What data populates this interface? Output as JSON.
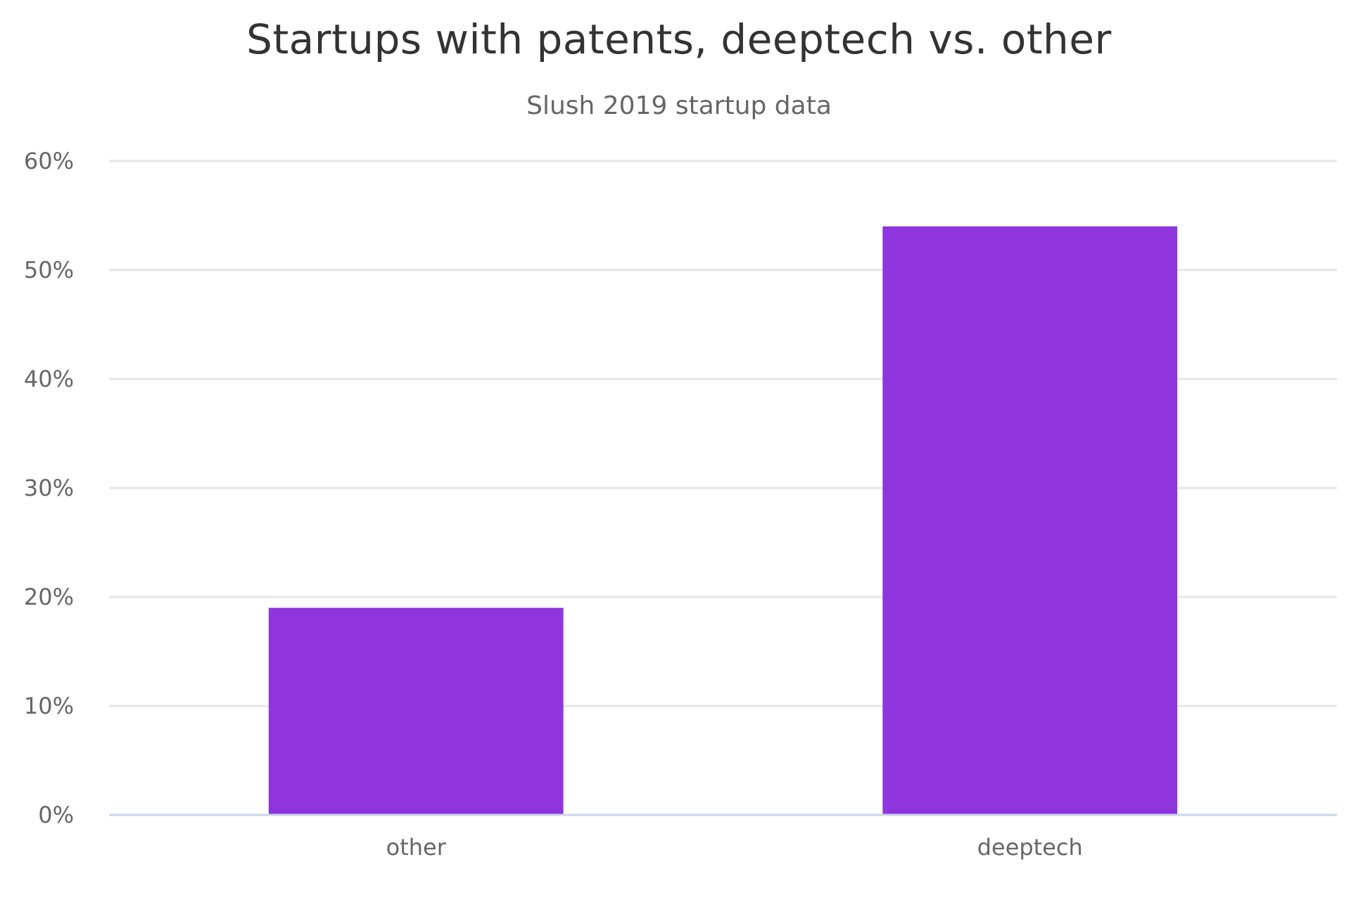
{
  "chart_data": {
    "type": "bar",
    "title": "Startups with patents, deeptech vs. other",
    "subtitle": "Slush 2019 startup data",
    "categories": [
      "other",
      "deeptech"
    ],
    "values": [
      19,
      54
    ],
    "unit": "%",
    "ylim": [
      0,
      60
    ],
    "yticks": [
      0,
      10,
      20,
      30,
      40,
      50,
      60
    ],
    "ytick_labels": [
      "0%",
      "10%",
      "20%",
      "30%",
      "40%",
      "50%",
      "60%"
    ],
    "xlabel": "",
    "ylabel": "",
    "grid": true,
    "legend": "none",
    "colors": {
      "bar": "#8E35DD",
      "grid": "#e6e6e6",
      "axis": "#ccd6eb",
      "text": "#666666",
      "title": "#333333"
    }
  }
}
